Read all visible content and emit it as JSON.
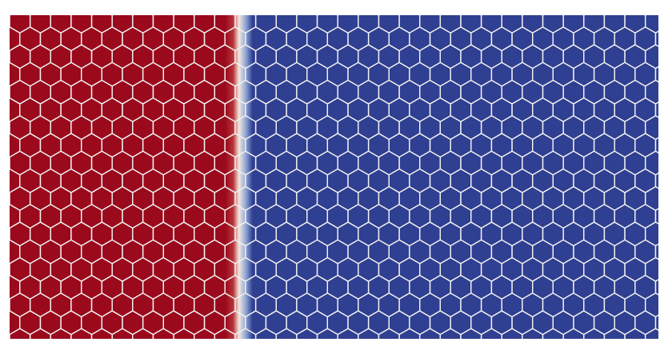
{
  "image": {
    "subject": "hexagonal-cell-mesh-scalar-field",
    "colors": {
      "background": "#ffffff",
      "high_value": "#9a0a1c",
      "high_value_mid": "#b8323a",
      "transition_light": "#f4e7dc",
      "transition_blue": "#8fa6d4",
      "low_value": "#2f3f91",
      "cell_edge": "#f2f2f2"
    },
    "field": {
      "high_region_fraction": 0.355,
      "transition_fraction": 0.03
    }
  }
}
